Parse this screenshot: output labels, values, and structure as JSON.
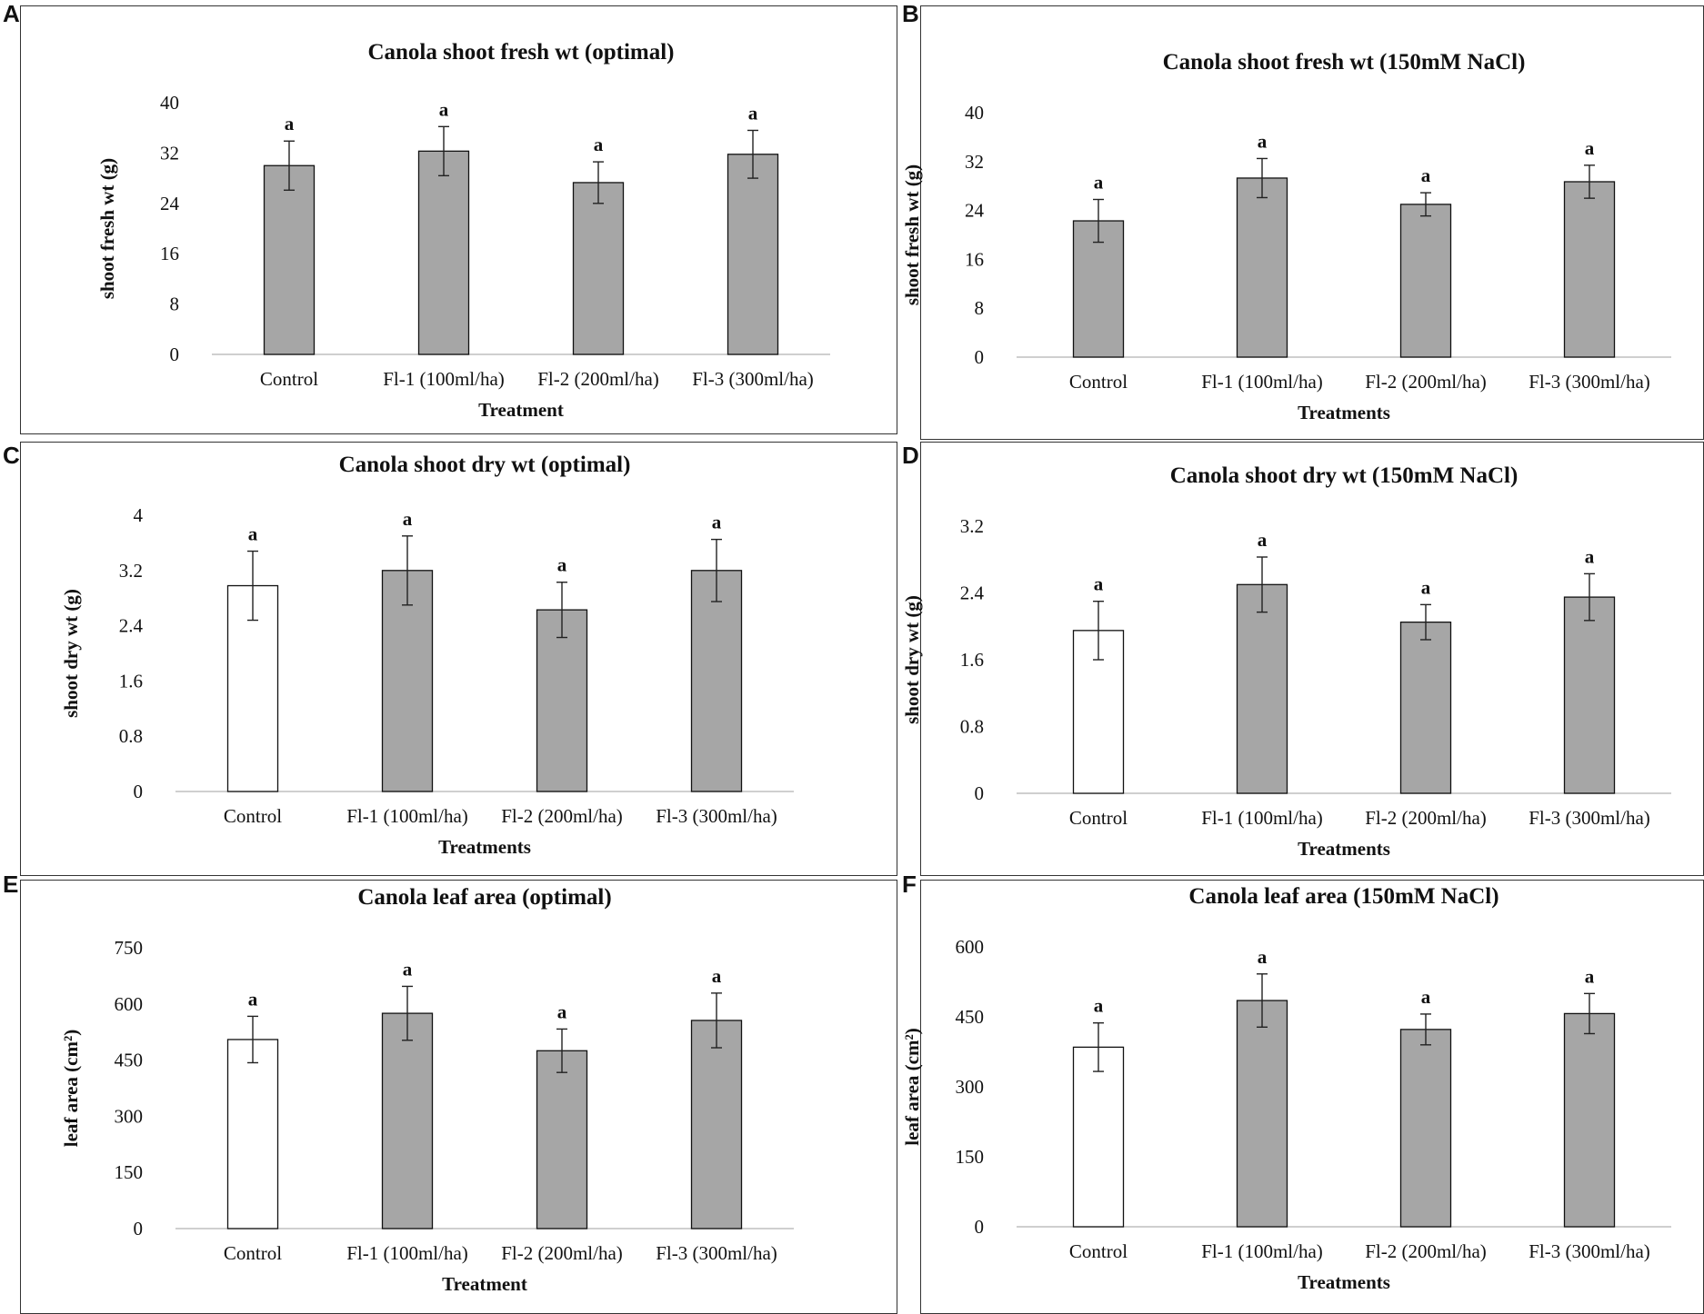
{
  "figure": {
    "panel_letters": [
      "A",
      "B",
      "C",
      "D",
      "E",
      "F"
    ]
  },
  "chart_data": [
    {
      "type": "bar",
      "title": "Canola shoot fresh wt (optimal)",
      "xlabel": "Treatment",
      "ylabel": "shoot  fresh wt (g)",
      "ylim": [
        0,
        40
      ],
      "yticks": [
        "0",
        "8",
        "16",
        "24",
        "32",
        "40"
      ],
      "categories": [
        "Control",
        "Fl-1 (100ml/ha)",
        "Fl-2 (200ml/ha)",
        "Fl-3 (300ml/ha)"
      ],
      "values": [
        30,
        32.3,
        27.3,
        31.8
      ],
      "errors": [
        3.9,
        3.9,
        3.3,
        3.8
      ],
      "significance": [
        "a",
        "a",
        "a",
        "a"
      ],
      "bar_fills": [
        "#a6a6a6",
        "#a6a6a6",
        "#a6a6a6",
        "#a6a6a6"
      ]
    },
    {
      "type": "bar",
      "title": "Canola shoot fresh wt (150mM NaCl)",
      "xlabel": "Treatments",
      "ylabel": "shoot  fresh wt (g)",
      "ylim": [
        0,
        40
      ],
      "yticks": [
        "0",
        "8",
        "16",
        "24",
        "32",
        "40"
      ],
      "categories": [
        "Control",
        "Fl-1 (100ml/ha)",
        "Fl-2 (200ml/ha)",
        "Fl-3 (300ml/ha)"
      ],
      "values": [
        22.3,
        29.3,
        25,
        28.7
      ],
      "errors": [
        3.5,
        3.2,
        1.9,
        2.7
      ],
      "significance": [
        "a",
        "a",
        "a",
        "a"
      ],
      "bar_fills": [
        "#a6a6a6",
        "#a6a6a6",
        "#a6a6a6",
        "#a6a6a6"
      ]
    },
    {
      "type": "bar",
      "title": "Canola shoot dry  wt (optimal)",
      "xlabel": "Treatments",
      "ylabel": "shoot dry wt (g)",
      "ylim": [
        0,
        4
      ],
      "yticks": [
        "0",
        "0.8",
        "1.6",
        "2.4",
        "3.2",
        "4"
      ],
      "categories": [
        "Control",
        "Fl-1 (100ml/ha)",
        "Fl-2 (200ml/ha)",
        "Fl-3 (300ml/ha)"
      ],
      "values": [
        2.98,
        3.2,
        2.63,
        3.2
      ],
      "errors": [
        0.5,
        0.5,
        0.4,
        0.45
      ],
      "significance": [
        "a",
        "a",
        "a",
        "a"
      ],
      "bar_fills": [
        "#ffffff",
        "#a6a6a6",
        "#a6a6a6",
        "#a6a6a6"
      ]
    },
    {
      "type": "bar",
      "title": "Canola shoot dry  wt (150mM NaCl)",
      "xlabel": "Treatments",
      "ylabel": "shoot dry wt (g)",
      "ylim": [
        0,
        3.2
      ],
      "yticks": [
        "0",
        "0.8",
        "1.6",
        "2.4",
        "3.2"
      ],
      "categories": [
        "Control",
        "Fl-1 (100ml/ha)",
        "Fl-2 (200ml/ha)",
        "Fl-3 (300ml/ha)"
      ],
      "values": [
        1.95,
        2.5,
        2.05,
        2.35
      ],
      "errors": [
        0.35,
        0.33,
        0.21,
        0.28
      ],
      "significance": [
        "a",
        "a",
        "a",
        "a"
      ],
      "bar_fills": [
        "#ffffff",
        "#a6a6a6",
        "#a6a6a6",
        "#a6a6a6"
      ]
    },
    {
      "type": "bar",
      "title": "Canola leaf area (optimal)",
      "xlabel": "Treatment",
      "ylabel": "leaf area (cm²)",
      "ylim": [
        0,
        750
      ],
      "yticks": [
        "0",
        "150",
        "300",
        "450",
        "600",
        "750"
      ],
      "categories": [
        "Control",
        "Fl-1 (100ml/ha)",
        "Fl-2 (200ml/ha)",
        "Fl-3 (300ml/ha)"
      ],
      "values": [
        505,
        575,
        475,
        556
      ],
      "errors": [
        62,
        72,
        58,
        73
      ],
      "significance": [
        "a",
        "a",
        "a",
        "a"
      ],
      "bar_fills": [
        "#ffffff",
        "#a6a6a6",
        "#a6a6a6",
        "#a6a6a6"
      ]
    },
    {
      "type": "bar",
      "title": "Canola leaf area (150mM NaCl)",
      "xlabel": "Treatments",
      "ylabel": "leaf area (cm²)",
      "ylim": [
        0,
        600
      ],
      "yticks": [
        "0",
        "150",
        "300",
        "450",
        "600"
      ],
      "categories": [
        "Control",
        "Fl-1 (100ml/ha)",
        "Fl-2 (200ml/ha)",
        "Fl-3 (300ml/ha)"
      ],
      "values": [
        385,
        485,
        423,
        457
      ],
      "errors": [
        52,
        57,
        33,
        43
      ],
      "significance": [
        "a",
        "a",
        "a",
        "a"
      ],
      "bar_fills": [
        "#ffffff",
        "#a6a6a6",
        "#a6a6a6",
        "#a6a6a6"
      ]
    }
  ]
}
